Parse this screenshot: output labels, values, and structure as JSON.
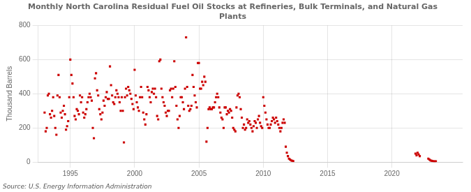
{
  "chart_data": {
    "type": "scatter",
    "title": "Monthly North Carolina Residual Fuel Oil Stocks at Refineries, Bulk Terminals, and Natural Gas\nPlants",
    "ylabel": "Thousand Barrels",
    "annotations": [
      "Source: U.S. Energy Information Administration"
    ],
    "color": "#CC0000",
    "marker": "square",
    "grid": true,
    "xlim": [
      1992.5,
      2025.5
    ],
    "xticks": [
      1995,
      2000,
      2005,
      2010,
      2015,
      2020
    ],
    "ylim": [
      0,
      800
    ],
    "yticks": [
      0,
      200,
      400,
      600,
      800
    ],
    "x": [
      1993.0,
      1993.083,
      1993.167,
      1993.25,
      1993.333,
      1993.417,
      1993.5,
      1993.583,
      1993.667,
      1993.75,
      1993.833,
      1993.917,
      1994.0,
      1994.083,
      1994.167,
      1994.25,
      1994.333,
      1994.417,
      1994.5,
      1994.583,
      1994.667,
      1994.75,
      1994.833,
      1994.917,
      1995.0,
      1995.083,
      1995.167,
      1995.25,
      1995.333,
      1995.417,
      1995.5,
      1995.583,
      1995.667,
      1995.75,
      1995.833,
      1995.917,
      1996.0,
      1996.083,
      1996.167,
      1996.25,
      1996.333,
      1996.417,
      1996.5,
      1996.583,
      1996.667,
      1996.75,
      1996.833,
      1996.917,
      1997.0,
      1997.083,
      1997.167,
      1997.25,
      1997.333,
      1997.417,
      1997.5,
      1997.583,
      1997.667,
      1997.75,
      1997.833,
      1997.917,
      1998.0,
      1998.083,
      1998.167,
      1998.25,
      1998.333,
      1998.417,
      1998.5,
      1998.583,
      1998.667,
      1998.75,
      1998.833,
      1998.917,
      1999.0,
      1999.083,
      1999.167,
      1999.25,
      1999.333,
      1999.417,
      1999.5,
      1999.583,
      1999.667,
      1999.75,
      1999.833,
      1999.917,
      2000.0,
      2000.083,
      2000.167,
      2000.25,
      2000.333,
      2000.417,
      2000.5,
      2000.583,
      2000.667,
      2000.75,
      2000.833,
      2000.917,
      2001.0,
      2001.083,
      2001.167,
      2001.25,
      2001.333,
      2001.417,
      2001.5,
      2001.583,
      2001.667,
      2001.75,
      2001.833,
      2001.917,
      2002.0,
      2002.083,
      2002.167,
      2002.25,
      2002.333,
      2002.417,
      2002.5,
      2002.583,
      2002.667,
      2002.75,
      2002.833,
      2002.917,
      2003.0,
      2003.083,
      2003.167,
      2003.25,
      2003.333,
      2003.417,
      2003.5,
      2003.583,
      2003.667,
      2003.75,
      2003.833,
      2003.917,
      2004.0,
      2004.083,
      2004.167,
      2004.25,
      2004.333,
      2004.417,
      2004.5,
      2004.583,
      2004.667,
      2004.75,
      2004.833,
      2004.917,
      2005.0,
      2005.083,
      2005.167,
      2005.25,
      2005.333,
      2005.417,
      2005.5,
      2005.583,
      2005.667,
      2005.75,
      2005.833,
      2005.917,
      2006.0,
      2006.083,
      2006.167,
      2006.25,
      2006.333,
      2006.417,
      2006.5,
      2006.583,
      2006.667,
      2006.75,
      2006.833,
      2006.917,
      2007.0,
      2007.083,
      2007.167,
      2007.25,
      2007.333,
      2007.417,
      2007.5,
      2007.583,
      2007.667,
      2007.75,
      2007.833,
      2007.917,
      2008.0,
      2008.083,
      2008.167,
      2008.25,
      2008.333,
      2008.417,
      2008.5,
      2008.583,
      2008.667,
      2008.75,
      2008.833,
      2008.917,
      2009.0,
      2009.083,
      2009.167,
      2009.25,
      2009.333,
      2009.417,
      2009.5,
      2009.583,
      2009.667,
      2009.75,
      2009.833,
      2009.917,
      2010.0,
      2010.083,
      2010.167,
      2010.25,
      2010.333,
      2010.417,
      2010.5,
      2010.583,
      2010.667,
      2010.75,
      2010.833,
      2010.917,
      2011.0,
      2011.083,
      2011.167,
      2011.25,
      2011.333,
      2011.417,
      2011.5,
      2011.583,
      2011.667,
      2011.75,
      2011.833,
      2011.917,
      2012.0,
      2012.083,
      2012.167,
      2012.25,
      2012.333,
      2021.833,
      2021.917,
      2022.0,
      2022.083,
      2022.167,
      2022.833,
      2022.917,
      2023.0,
      2023.083,
      2023.167,
      2023.25,
      2023.333,
      2023.417
    ],
    "values": [
      290,
      180,
      200,
      390,
      400,
      280,
      260,
      300,
      380,
      270,
      200,
      160,
      390,
      510,
      380,
      290,
      260,
      300,
      330,
      280,
      190,
      210,
      240,
      380,
      600,
      510,
      460,
      380,
      270,
      250,
      310,
      300,
      280,
      390,
      350,
      380,
      290,
      260,
      280,
      310,
      350,
      380,
      400,
      380,
      360,
      200,
      140,
      490,
      520,
      420,
      390,
      310,
      280,
      250,
      290,
      360,
      330,
      380,
      410,
      370,
      370,
      560,
      450,
      390,
      350,
      340,
      380,
      420,
      400,
      380,
      350,
      300,
      380,
      300,
      115,
      380,
      430,
      390,
      440,
      420,
      400,
      370,
      340,
      310,
      540,
      390,
      350,
      320,
      300,
      380,
      440,
      380,
      290,
      250,
      220,
      280,
      440,
      420,
      380,
      350,
      410,
      430,
      400,
      430,
      380,
      270,
      250,
      590,
      600,
      430,
      380,
      350,
      330,
      290,
      270,
      300,
      300,
      420,
      430,
      380,
      430,
      590,
      440,
      330,
      250,
      200,
      270,
      380,
      380,
      350,
      310,
      430,
      730,
      440,
      330,
      300,
      310,
      330,
      510,
      440,
      390,
      350,
      320,
      580,
      580,
      430,
      430,
      470,
      450,
      500,
      470,
      120,
      200,
      310,
      320,
      310,
      310,
      320,
      320,
      350,
      380,
      400,
      380,
      320,
      290,
      260,
      250,
      200,
      320,
      320,
      280,
      300,
      290,
      310,
      300,
      260,
      200,
      190,
      180,
      320,
      390,
      400,
      380,
      310,
      260,
      200,
      220,
      190,
      200,
      250,
      230,
      240,
      220,
      200,
      180,
      210,
      240,
      230,
      200,
      250,
      270,
      230,
      210,
      200,
      380,
      330,
      290,
      250,
      220,
      200,
      200,
      220,
      240,
      260,
      250,
      230,
      260,
      240,
      220,
      200,
      180,
      200,
      230,
      250,
      230,
      90,
      55,
      35,
      20,
      15,
      10,
      8,
      6,
      50,
      40,
      55,
      45,
      35,
      20,
      15,
      10,
      8,
      6,
      5,
      4,
      5
    ]
  }
}
